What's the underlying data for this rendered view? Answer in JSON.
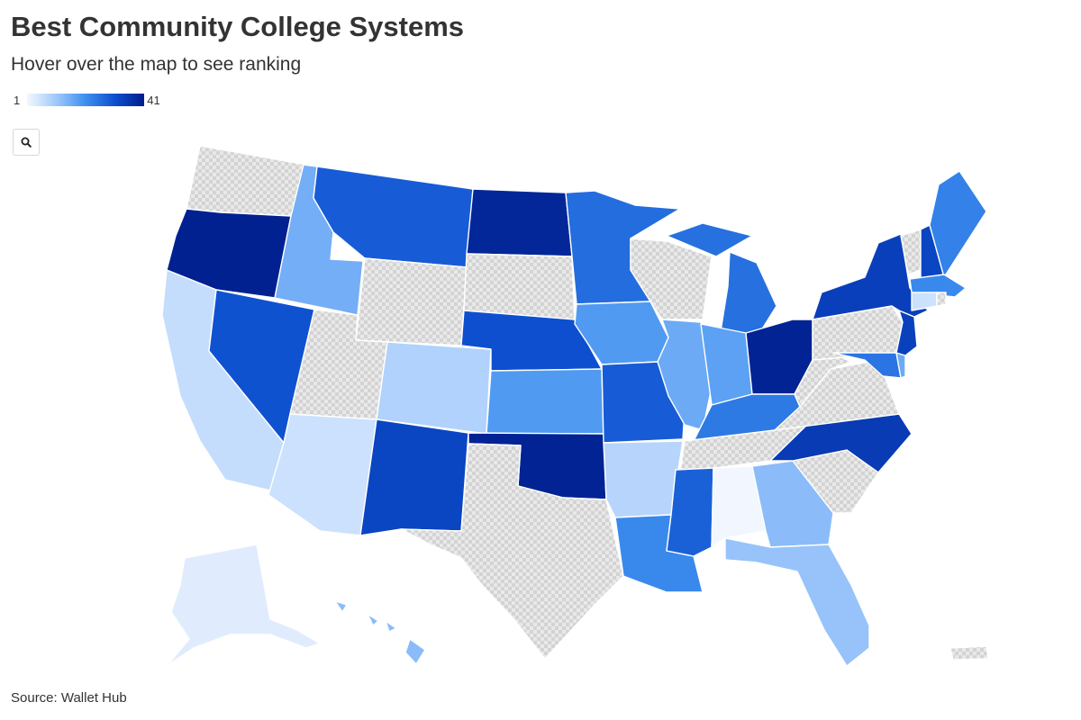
{
  "header": {
    "title": "Best Community College Systems",
    "subtitle": "Hover over the map to see ranking"
  },
  "legend": {
    "min_label": "1",
    "max_label": "41",
    "colors": [
      "#f4f8ff",
      "#9fc8fb",
      "#3d8ef0",
      "#0d4fcf",
      "#001d8c"
    ]
  },
  "toolbar": {
    "search_icon": "search-icon"
  },
  "source": "Source: Wallet Hub",
  "map_data": {
    "type": "choropleth",
    "region": "United States",
    "scale": "continuous",
    "no_data_pattern": "grey-checker",
    "no_data_states": [
      "WA",
      "WY",
      "UT",
      "SD",
      "WI",
      "TX",
      "PA",
      "VA",
      "WV",
      "TN",
      "SC",
      "VT",
      "RI",
      "PR"
    ],
    "states": [
      {
        "id": "OR",
        "level": 0.98
      },
      {
        "id": "ND",
        "level": 0.95
      },
      {
        "id": "OK",
        "level": 0.97
      },
      {
        "id": "OH",
        "level": 0.97
      },
      {
        "id": "NC",
        "level": 0.85
      },
      {
        "id": "NY",
        "level": 0.83
      },
      {
        "id": "NJ",
        "level": 0.82
      },
      {
        "id": "NM",
        "level": 0.8
      },
      {
        "id": "NH",
        "level": 0.8
      },
      {
        "id": "NE",
        "level": 0.75
      },
      {
        "id": "NV",
        "level": 0.74
      },
      {
        "id": "MT",
        "level": 0.7
      },
      {
        "id": "MO",
        "level": 0.7
      },
      {
        "id": "MS",
        "level": 0.68
      },
      {
        "id": "MN",
        "level": 0.63
      },
      {
        "id": "MI",
        "level": 0.62
      },
      {
        "id": "MD",
        "level": 0.6
      },
      {
        "id": "KY",
        "level": 0.58
      },
      {
        "id": "ME",
        "level": 0.55
      },
      {
        "id": "LA",
        "level": 0.52
      },
      {
        "id": "MA",
        "level": 0.52
      },
      {
        "id": "KS",
        "level": 0.45
      },
      {
        "id": "IA",
        "level": 0.45
      },
      {
        "id": "IN",
        "level": 0.42
      },
      {
        "id": "IL",
        "level": 0.38
      },
      {
        "id": "DE",
        "level": 0.38
      },
      {
        "id": "ID",
        "level": 0.36
      },
      {
        "id": "GA",
        "level": 0.3
      },
      {
        "id": "FL",
        "level": 0.27
      },
      {
        "id": "HI",
        "level": 0.3
      },
      {
        "id": "CO",
        "level": 0.2
      },
      {
        "id": "AR",
        "level": 0.18
      },
      {
        "id": "CA",
        "level": 0.14
      },
      {
        "id": "AZ",
        "level": 0.12
      },
      {
        "id": "CT",
        "level": 0.12
      },
      {
        "id": "AK",
        "level": 0.06
      },
      {
        "id": "AL",
        "level": 0.01
      }
    ]
  }
}
